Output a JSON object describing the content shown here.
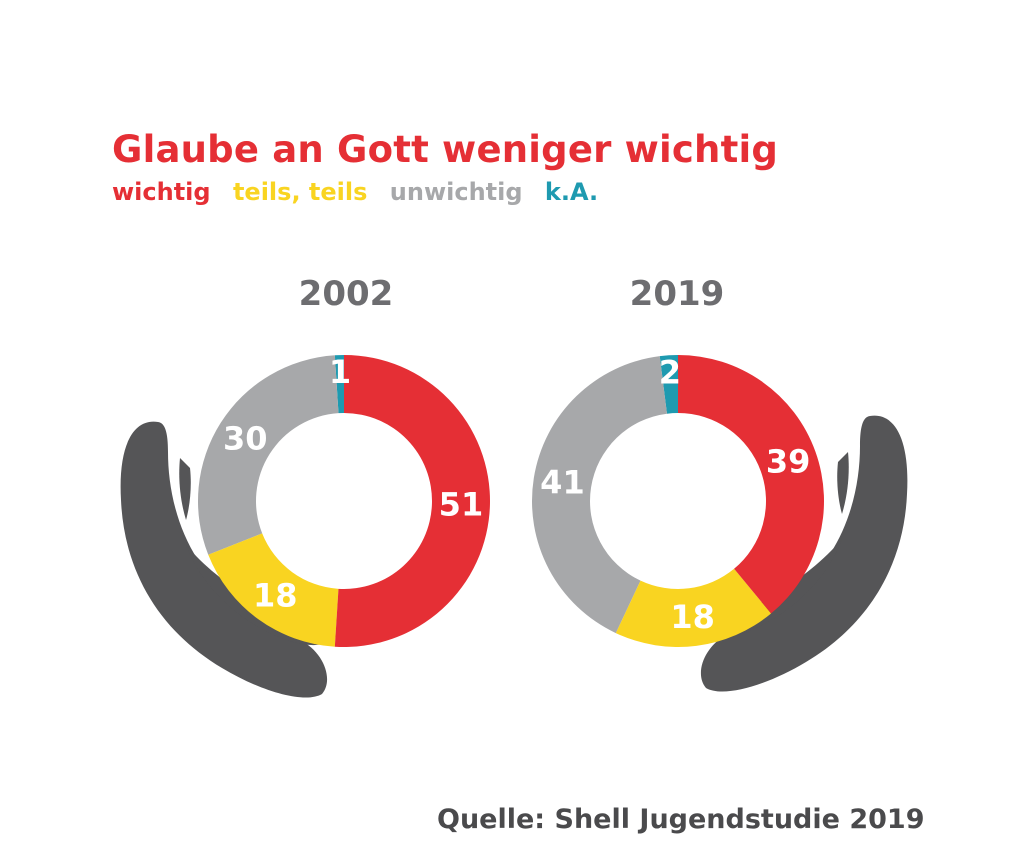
{
  "title": "Glaube an Gott weniger wichtig",
  "legend": [
    {
      "label": "wichtig",
      "color": "#e52f35"
    },
    {
      "label": "teils, teils",
      "color": "#f9d421"
    },
    {
      "label": "unwichtig",
      "color": "#a7a8aa"
    },
    {
      "label": "k.A.",
      "color": "#1e9ab0"
    }
  ],
  "source": "Quelle: Shell Jugendstudie 2019",
  "chart_data": [
    {
      "type": "pie",
      "title": "2002",
      "categories": [
        "wichtig",
        "teils, teils",
        "unwichtig",
        "k.A."
      ],
      "values": [
        51,
        18,
        30,
        1
      ],
      "colors": [
        "#e52f35",
        "#f9d421",
        "#a7a8aa",
        "#1e9ab0"
      ],
      "labels": [
        "51",
        "18",
        "30",
        "1"
      ]
    },
    {
      "type": "pie",
      "title": "2019",
      "categories": [
        "wichtig",
        "teils, teils",
        "unwichtig",
        "k.A."
      ],
      "values": [
        39,
        18,
        41,
        2
      ],
      "colors": [
        "#e52f35",
        "#f9d421",
        "#a7a8aa",
        "#1e9ab0"
      ],
      "labels": [
        "39",
        "18",
        "41",
        "2"
      ]
    }
  ]
}
